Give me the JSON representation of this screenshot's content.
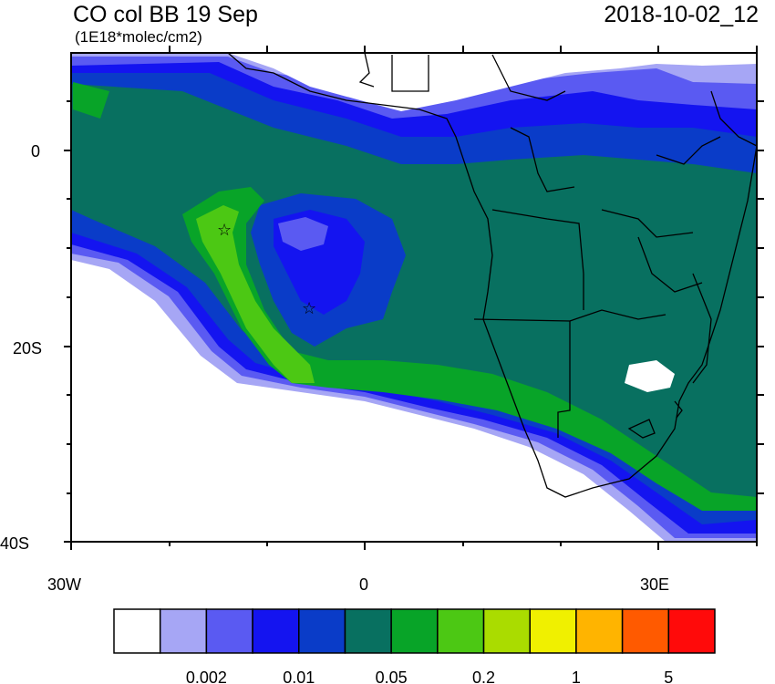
{
  "header": {
    "title": "CO col BB 19 Sep",
    "units": "(1E18*molec/cm2)",
    "datetime": "2018-10-02_12"
  },
  "axes": {
    "lat_labels": [
      "0",
      "20S",
      "40S"
    ],
    "lon_labels": [
      "30W",
      "0",
      "30E"
    ]
  },
  "colorbar": {
    "colors": [
      "#ffffff",
      "#a6a6f5",
      "#5a5af2",
      "#1414f0",
      "#0a3cc8",
      "#087060",
      "#08a428",
      "#4cc814",
      "#aadc00",
      "#f0f000",
      "#ffb400",
      "#ff5a00",
      "#ff0a0a"
    ],
    "labels": [
      "0.002",
      "0.01",
      "0.05",
      "0.2",
      "1",
      "5"
    ]
  },
  "markers": {
    "symbol": "☆"
  }
}
